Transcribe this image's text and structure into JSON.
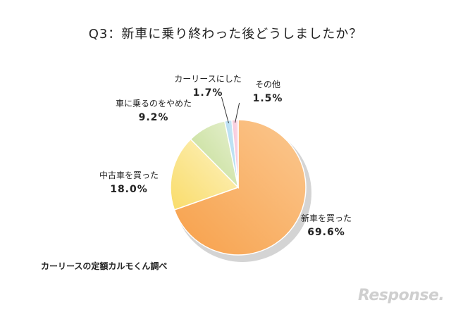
{
  "chart_data": {
    "type": "pie",
    "title": "Q3：新車に乗り終わった後どうしましたか？",
    "slices": [
      {
        "label": "新車を買った",
        "value": 69.6,
        "value_label": "69.6%",
        "color_start": "#f7a04a",
        "color_end": "#fbc890"
      },
      {
        "label": "中古車を買った",
        "value": 18.0,
        "value_label": "18.0%",
        "color_start": "#f9dc6a",
        "color_end": "#fdf2c2"
      },
      {
        "label": "車に乗るのをやめた",
        "value": 9.2,
        "value_label": "9.2%",
        "color_start": "#c2dc92",
        "color_end": "#e6f0cf"
      },
      {
        "label": "カーリースにした",
        "value": 1.7,
        "value_label": "1.7%",
        "color_start": "#9fd3ee",
        "color_end": "#d3ecf8"
      },
      {
        "label": "その他",
        "value": 1.5,
        "value_label": "1.5%",
        "color_start": "#f5b6cf",
        "color_end": "#fbdce8"
      }
    ]
  },
  "source": "カーリースの定額カルモくん調べ",
  "logo": "Response."
}
